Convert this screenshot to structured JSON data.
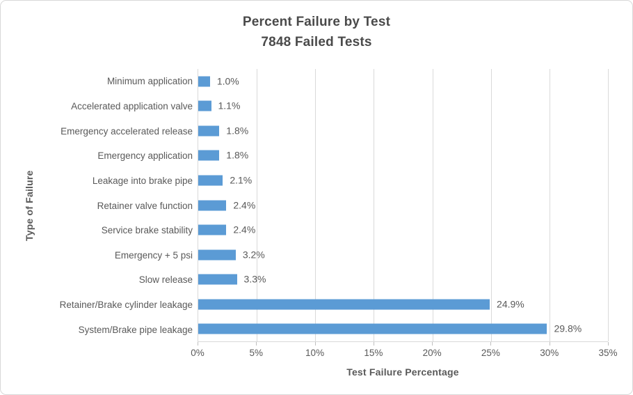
{
  "chart_data": {
    "type": "bar",
    "orientation": "horizontal",
    "title": "Percent Failure by Test",
    "subtitle": "7848 Failed Tests",
    "categories": [
      "Minimum application",
      "Accelerated application valve",
      "Emergency accelerated release",
      "Emergency application",
      "Leakage into brake pipe",
      "Retainer valve function",
      "Service brake stability",
      "Emergency + 5 psi",
      "Slow release",
      "Retainer/Brake cylinder leakage",
      "System/Brake pipe leakage"
    ],
    "values": [
      1.0,
      1.1,
      1.8,
      1.8,
      2.1,
      2.4,
      2.4,
      3.2,
      3.3,
      24.9,
      29.8
    ],
    "value_labels": [
      "1.0%",
      "1.1%",
      "1.8%",
      "1.8%",
      "2.1%",
      "2.4%",
      "2.4%",
      "3.2%",
      "3.3%",
      "24.9%",
      "29.8%"
    ],
    "xlabel": "Test Failure Percentage",
    "ylabel": "Type of Failure",
    "xlim": [
      0,
      35
    ],
    "xticks": [
      0,
      5,
      10,
      15,
      20,
      25,
      30,
      35
    ],
    "xtick_labels": [
      "0%",
      "5%",
      "10%",
      "15%",
      "20%",
      "25%",
      "30%",
      "35%"
    ],
    "grid": "vertical-only",
    "legend": "none",
    "bar_color": "#5B9BD5",
    "text_color": "#595959",
    "gridline_color": "#D9D9D9"
  }
}
